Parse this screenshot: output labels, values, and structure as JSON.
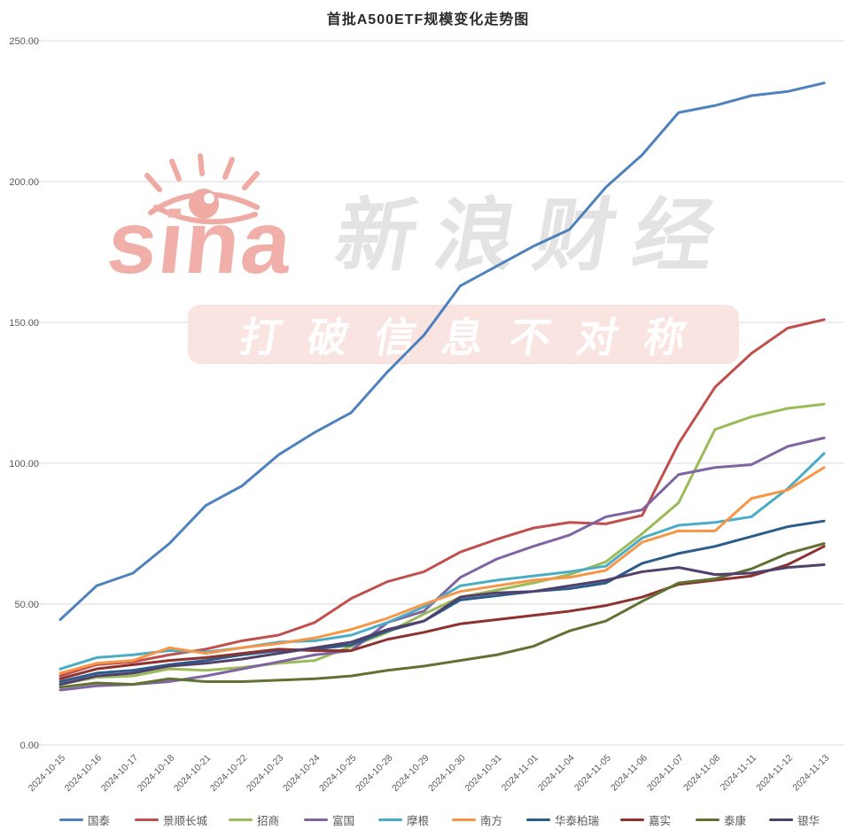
{
  "title": "首批A500ETF规模变化走势图",
  "watermark": {
    "logo_text": "sina",
    "brand_text": "新浪财经",
    "slogan": "打破信息不对称",
    "logo_color": "#f0afa9",
    "brand_color": "#e3e3e3",
    "banner_color": "#f9e4e1"
  },
  "chart_data": {
    "type": "line",
    "title": "首批A500ETF规模变化走势图",
    "xlabel": "",
    "ylabel": "",
    "ylim": [
      0,
      250
    ],
    "ytick_step": 50,
    "ytick_labels": [
      "0.00",
      "50.00",
      "100.00",
      "150.00",
      "200.00",
      "250.00"
    ],
    "grid": "horizontal",
    "legend_position": "bottom",
    "categories": [
      "2024-10-15",
      "2024-10-16",
      "2024-10-17",
      "2024-10-18",
      "2024-10-21",
      "2024-10-22",
      "2024-10-23",
      "2024-10-24",
      "2024-10-25",
      "2024-10-28",
      "2024-10-29",
      "2024-10-30",
      "2024-10-31",
      "2024-11-01",
      "2024-11-04",
      "2024-11-05",
      "2024-11-06",
      "2024-11-07",
      "2024-11-08",
      "2024-11-11",
      "2024-11-12",
      "2024-11-13"
    ],
    "series": [
      {
        "name": "国泰",
        "color": "#4f81bd",
        "values": [
          44.5,
          56.5,
          61,
          71.5,
          85,
          92,
          103,
          111,
          118,
          132.5,
          145.5,
          163,
          170,
          177,
          183,
          198,
          209.5,
          224.5,
          227,
          230.5,
          232,
          235
        ]
      },
      {
        "name": "景顺长城",
        "color": "#c0504d",
        "values": [
          24.5,
          28.5,
          29.5,
          32,
          34,
          37,
          39,
          43.5,
          52,
          58,
          61.5,
          68.5,
          73,
          77,
          79,
          78.5,
          81.5,
          107,
          127,
          139,
          148,
          151
        ]
      },
      {
        "name": "招商",
        "color": "#9bbb59",
        "values": [
          21.5,
          24,
          24.5,
          27,
          26.5,
          27.5,
          29,
          30,
          35,
          40,
          46.5,
          52.5,
          55,
          57.5,
          60.5,
          65,
          75,
          86,
          112,
          116.5,
          119.5,
          121
        ]
      },
      {
        "name": "富国",
        "color": "#8064a2",
        "values": [
          19.5,
          21,
          21.5,
          22.5,
          24.5,
          27,
          29.5,
          32,
          33.5,
          43.5,
          47.5,
          59.5,
          66,
          70.5,
          74.5,
          81,
          83.5,
          96,
          98.5,
          99.5,
          106,
          109
        ]
      },
      {
        "name": "摩根",
        "color": "#4bacc6",
        "values": [
          27,
          31,
          32,
          33.5,
          33,
          34.5,
          36.5,
          37,
          39,
          43.5,
          49,
          56.5,
          58.5,
          60,
          61.5,
          63.5,
          73.5,
          78,
          79,
          81,
          91,
          103.5
        ]
      },
      {
        "name": "南方",
        "color": "#f79646",
        "values": [
          25.5,
          29,
          30,
          34.5,
          32.5,
          34.5,
          36,
          38,
          41,
          45,
          50,
          54.5,
          56.5,
          58.5,
          59.5,
          62,
          72,
          76,
          76,
          87.5,
          90.5,
          98.5
        ]
      },
      {
        "name": "华泰柏瑞",
        "color": "#2c5c8a",
        "values": [
          22.5,
          25.5,
          26.5,
          28.5,
          30,
          32,
          33.5,
          34,
          35.5,
          40.5,
          44,
          51.5,
          53,
          54.5,
          55.5,
          57.5,
          64.5,
          68,
          70.5,
          74,
          77.5,
          79.5
        ]
      },
      {
        "name": "嘉实",
        "color": "#8e3230",
        "values": [
          23.5,
          27,
          28.5,
          30,
          31,
          32.5,
          34,
          33.5,
          33.5,
          37.5,
          40,
          43,
          44.5,
          46,
          47.5,
          49.5,
          52.5,
          57,
          58.5,
          60,
          64,
          70.5
        ]
      },
      {
        "name": "泰康",
        "color": "#5f7233",
        "values": [
          20.5,
          22,
          21.5,
          23.5,
          22.5,
          22.5,
          23,
          23.5,
          24.5,
          26.5,
          28,
          30,
          32,
          35,
          40.5,
          44,
          51,
          57.5,
          59,
          62.5,
          68,
          71.5
        ]
      },
      {
        "name": "银华",
        "color": "#50406b",
        "values": [
          21.5,
          24.5,
          25.5,
          28,
          29,
          30.5,
          32.5,
          34.5,
          36.5,
          41,
          44,
          52.5,
          54,
          54.5,
          56.5,
          58.5,
          61.5,
          63,
          60.5,
          61,
          63,
          64
        ]
      }
    ]
  }
}
